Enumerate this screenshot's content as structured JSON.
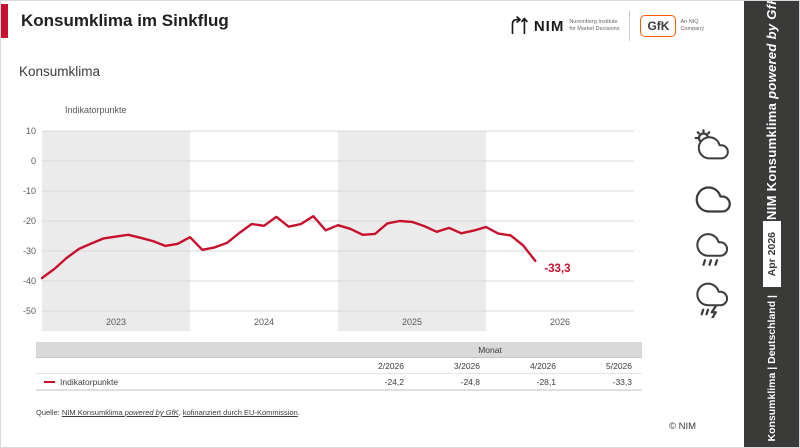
{
  "header": {
    "title": "Konsumklima im Sinkflug"
  },
  "section_title": "Konsumklima",
  "logos": {
    "nim_name": "NIM",
    "nim_sub1": "Nuremberg Institute",
    "nim_sub2": "for Market Decisions",
    "gfk_name": "GfK",
    "gfk_sub1": "An NIQ",
    "gfk_sub2": "Company"
  },
  "chart_data": {
    "type": "line",
    "title": "Konsumklima",
    "ylabel": "Indikatorpunkte",
    "ylim": [
      -50,
      10
    ],
    "yticks": [
      10,
      0,
      -10,
      -20,
      -30,
      -40,
      -50
    ],
    "years": [
      "2023",
      "2024",
      "2025",
      "2026"
    ],
    "x_start": "2023-01",
    "band_colors": [
      "#ebebeb",
      "#ffffff"
    ],
    "grid": true,
    "series": [
      {
        "name": "Indikatorpunkte",
        "color": "#c8102e",
        "values": [
          -39.0,
          -36.0,
          -32.3,
          -29.3,
          -27.5,
          -25.8,
          -25.2,
          -24.6,
          -25.6,
          -26.7,
          -28.3,
          -27.6,
          -25.4,
          -29.6,
          -28.8,
          -27.3,
          -24.0,
          -21.0,
          -21.6,
          -18.6,
          -21.9,
          -21.0,
          -18.4,
          -23.1,
          -21.4,
          -22.6,
          -24.6,
          -24.3,
          -20.8,
          -20.0,
          -20.3,
          -21.7,
          -23.6,
          -22.3,
          -24.1,
          -23.2,
          -22.0,
          -24.2,
          -24.8,
          -28.1,
          -33.3
        ]
      }
    ],
    "end_label": "-33,3"
  },
  "table": {
    "group_header": "Monat",
    "row_label": "Indikatorpunkte",
    "columns": [
      "2/2026",
      "3/2026",
      "4/2026",
      "5/2026"
    ],
    "values": [
      "-24,2",
      "-24,8",
      "-28,1",
      "-33,3"
    ]
  },
  "weather_icons": [
    "sun-behind-cloud-icon",
    "cloud-icon",
    "rain-cloud-icon",
    "storm-cloud-icon"
  ],
  "footer": {
    "prefix": "Quelle: ",
    "link1_normal": "NIM Konsumklima ",
    "link1_italic": "powered by GfK",
    "separator": ", ",
    "link2": "kofinanziert durch EU-Kommission",
    "suffix": ".",
    "copyright": "© NIM"
  },
  "sidebar": {
    "title_normal": "NIM Konsumklima ",
    "title_italic": "powered by GfK",
    "date": "Apr 2026",
    "footer_label": "Konsumklima | Deutschland |"
  },
  "colors": {
    "accent_red": "#c8102e",
    "sidebar_dark": "#3a3a39",
    "band_gray": "#ebebeb",
    "gfk_orange": "#ff5900"
  }
}
